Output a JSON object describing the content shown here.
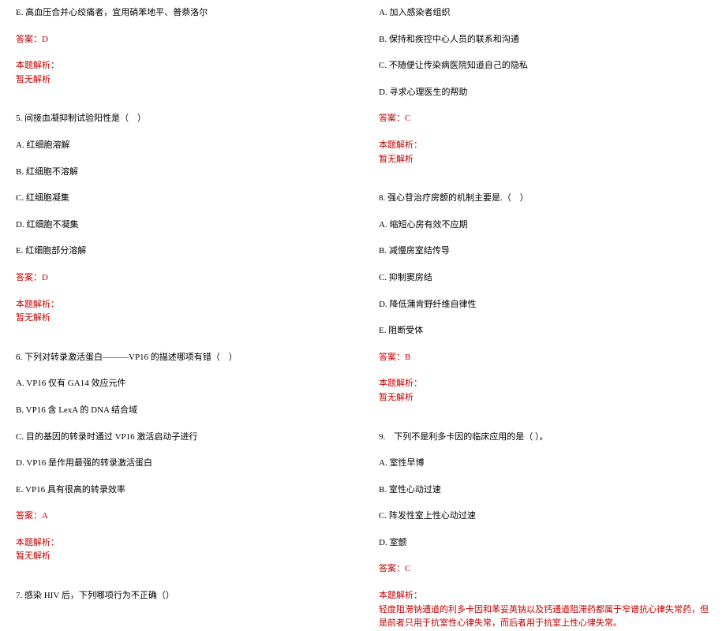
{
  "text_color": "#000000",
  "answer_color": "#c00000",
  "background_color": "#ffffff",
  "font_size": 11,
  "left_column": {
    "option_e_q4": "E. 高血压合并心绞痛者，宜用硝苯地平、普萘洛尔",
    "answer_q4": "答案：D",
    "analysis_label_q4": "本题解析：",
    "analysis_q4": "暂无解析",
    "q5": "5. 间接血凝抑制试验阳性是（　）",
    "q5_a": "A. 红细胞溶解",
    "q5_b": "B. 红细胞不溶解",
    "q5_c": "C. 红细胞凝集",
    "q5_d": "D. 红细胞不凝集",
    "q5_e": "E. 红细胞部分溶解",
    "answer_q5": "答案：D",
    "analysis_label_q5": "本题解析：",
    "analysis_q5": "暂无解析",
    "q6": "6. 下列对转录激活蛋白———VP16 的描述哪项有错（　）",
    "q6_a": "A. VP16 仅有 GA14 效应元件",
    "q6_b": "B. VP16 含 LexA 的 DNA 结合域",
    "q6_c": "C. 目的基因的转录时通过 VP16 激活启动子进行",
    "q6_d": "D. VP16 是作用最强的转录激活蛋白",
    "q6_e": "E. VP16 具有很高的转录效率",
    "answer_q6": "答案：A",
    "analysis_label_q6": "本题解析：",
    "analysis_q6": "暂无解析",
    "q7": "7. 感染 HIV 后，下列哪项行为不正确（）"
  },
  "right_column": {
    "q7_a": "A. 加入感染者组织",
    "q7_b": "B. 保持和疾控中心人员的联系和沟通",
    "q7_c": "C. 不随便让传染病医院知道自己的隐私",
    "q7_d": "D. 寻求心理医生的帮助",
    "answer_q7": "答案：C",
    "analysis_label_q7": "本题解析：",
    "analysis_q7": "暂无解析",
    "q8": "8. 强心苷治疗房颤的机制主要是.（　）",
    "q8_a": "A. 缩短心房有效不应期",
    "q8_b": "B. 减慢房室结传导",
    "q8_c": "C. 抑制窦房结",
    "q8_d": "D. 降低蒲肯野纤维自律性",
    "q8_e": "E. 阻断受体",
    "answer_q8": "答案：B",
    "analysis_label_q8": "本题解析：",
    "analysis_q8": "暂无解析",
    "q9": "9.　下列不是利多卡因的临床应用的是（ ）。",
    "q9_a": "A. 室性早博",
    "q9_b": "B. 室性心动过速",
    "q9_c": "C. 阵发性室上性心动过速",
    "q9_d": "D. 室颤",
    "answer_q9": "答案：C",
    "analysis_label_q9": "本题解析：",
    "analysis_q9": "轻度阻滞钠通道的利多卡因和苯妥英钠以及钙通道阻滞药都属于窄谱抗心律失常药，但是前者只用于抗室性心律失常，而后者用于抗室上性心律失常。"
  }
}
